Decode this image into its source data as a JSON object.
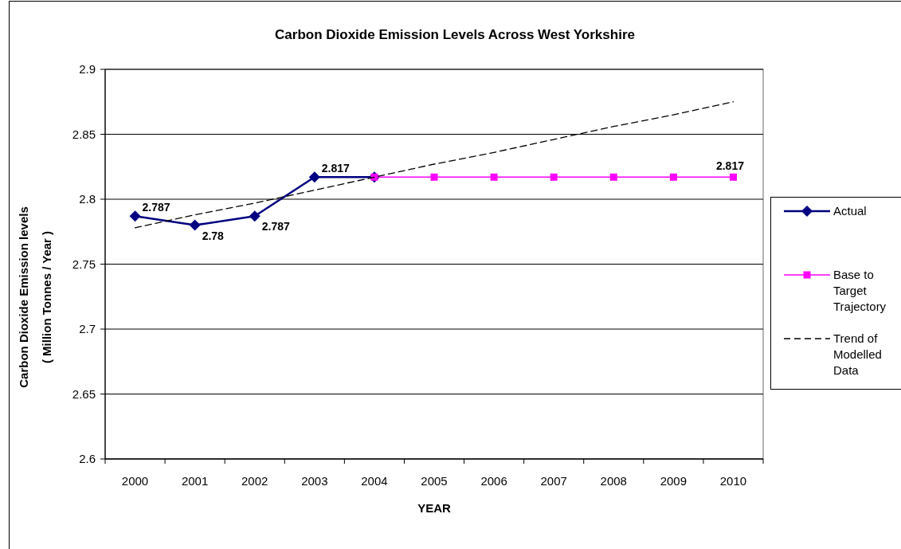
{
  "chart_data": {
    "type": "line",
    "title": "Carbon Dioxide Emission Levels Across West Yorkshire",
    "xlabel": "YEAR",
    "ylabel": "Carbon Dioxide Emission levels\n( Million Tonnes / Year )",
    "categories": [
      "2000",
      "2001",
      "2002",
      "2003",
      "2004",
      "2005",
      "2006",
      "2007",
      "2008",
      "2009",
      "2010"
    ],
    "series": [
      {
        "name": "Actual",
        "color": "#000080",
        "marker": "diamond",
        "line_style": "solid",
        "values": [
          2.787,
          2.78,
          2.787,
          2.817,
          2.817,
          null,
          null,
          null,
          null,
          null,
          null
        ],
        "value_labels": [
          "2.787",
          "2.78",
          "2.787",
          "2.817",
          null,
          null,
          null,
          null,
          null,
          null,
          null
        ]
      },
      {
        "name": "Base to Target Trajectory",
        "color": "#ff00ff",
        "marker": "square",
        "line_style": "solid",
        "values": [
          null,
          null,
          null,
          null,
          2.817,
          2.817,
          2.817,
          2.817,
          2.817,
          2.817,
          2.817
        ],
        "value_labels": [
          null,
          null,
          null,
          null,
          null,
          null,
          null,
          null,
          null,
          null,
          "2.817"
        ]
      },
      {
        "name": "Trend of Modelled Data",
        "color": "#000000",
        "marker": "none",
        "line_style": "dashed",
        "values": [
          2.778,
          2.788,
          2.797,
          2.807,
          2.817,
          2.827,
          2.836,
          2.846,
          2.856,
          2.865,
          2.875
        ]
      }
    ],
    "ylim": [
      2.6,
      2.9
    ],
    "yticks": [
      2.6,
      2.65,
      2.7,
      2.75,
      2.8,
      2.85,
      2.9
    ],
    "grid": "y",
    "legend": "right"
  }
}
